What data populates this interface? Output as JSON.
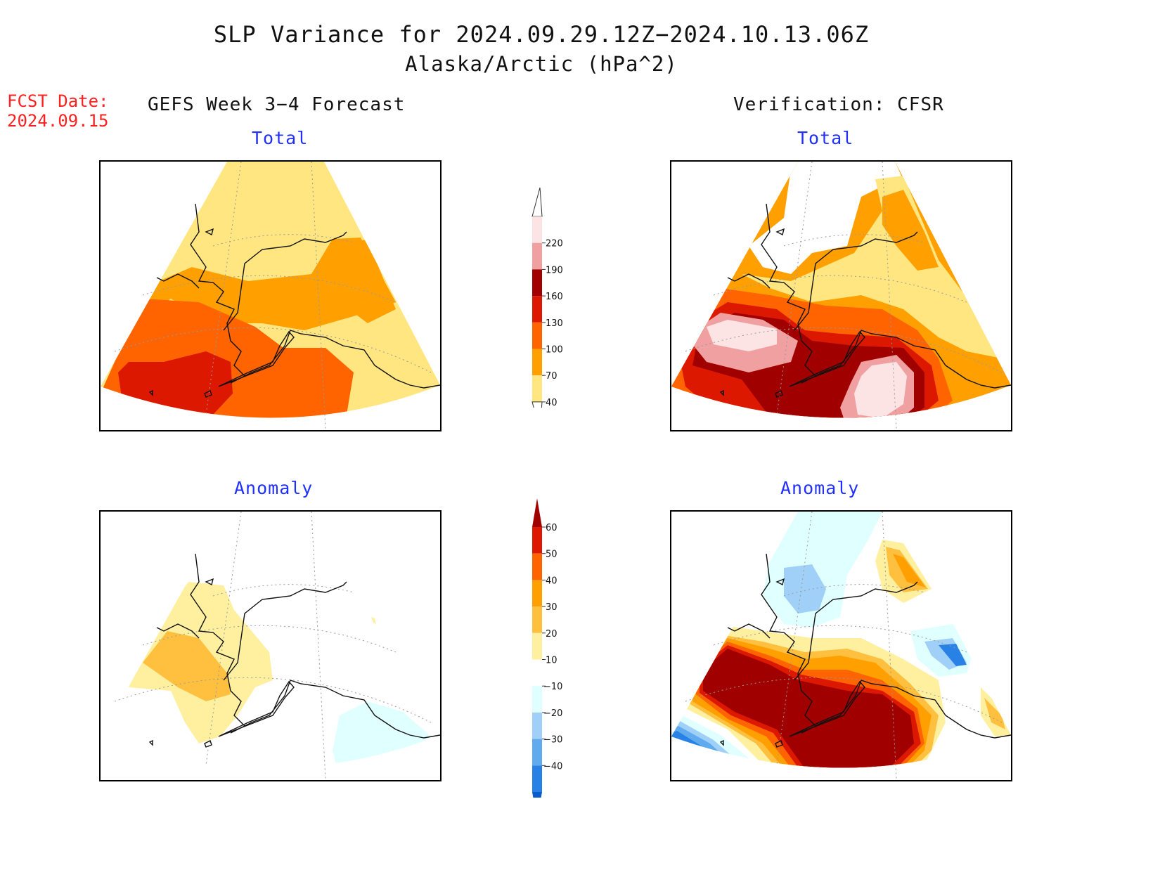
{
  "title": {
    "line1": "SLP Variance for 2024.09.29.12Z−2024.10.13.06Z",
    "line2": "Alaska/Arctic (hPa^2)"
  },
  "forecast_date": {
    "label": "FCST Date:",
    "value": "2024.09.15"
  },
  "columns": {
    "left": "GEFS Week 3−4 Forecast",
    "right": "Verification: CFSR"
  },
  "panels": {
    "top_left": "Total",
    "top_right": "Total",
    "bottom_left": "Anomaly",
    "bottom_right": "Anomaly"
  },
  "colorbars": {
    "total": {
      "labels": [
        "220",
        "190",
        "160",
        "130",
        "100",
        "70",
        "40"
      ],
      "colors": [
        "#fde4e4",
        "#f0a0a0",
        "#a00000",
        "#dd1800",
        "#ff6400",
        "#ffa000",
        "#ffe680"
      ]
    },
    "anomaly": {
      "labels": [
        "60",
        "50",
        "40",
        "30",
        "20",
        "10",
        "−10",
        "−20",
        "−30",
        "−40"
      ],
      "colors": [
        "#a00000",
        "#dd1800",
        "#ff6400",
        "#ffa000",
        "#ffc040",
        "#fff0a0",
        "#ffffff",
        "#e0ffff",
        "#a0d0f8",
        "#60aaee",
        "#2882e6",
        "#0a5ccc"
      ]
    }
  }
}
